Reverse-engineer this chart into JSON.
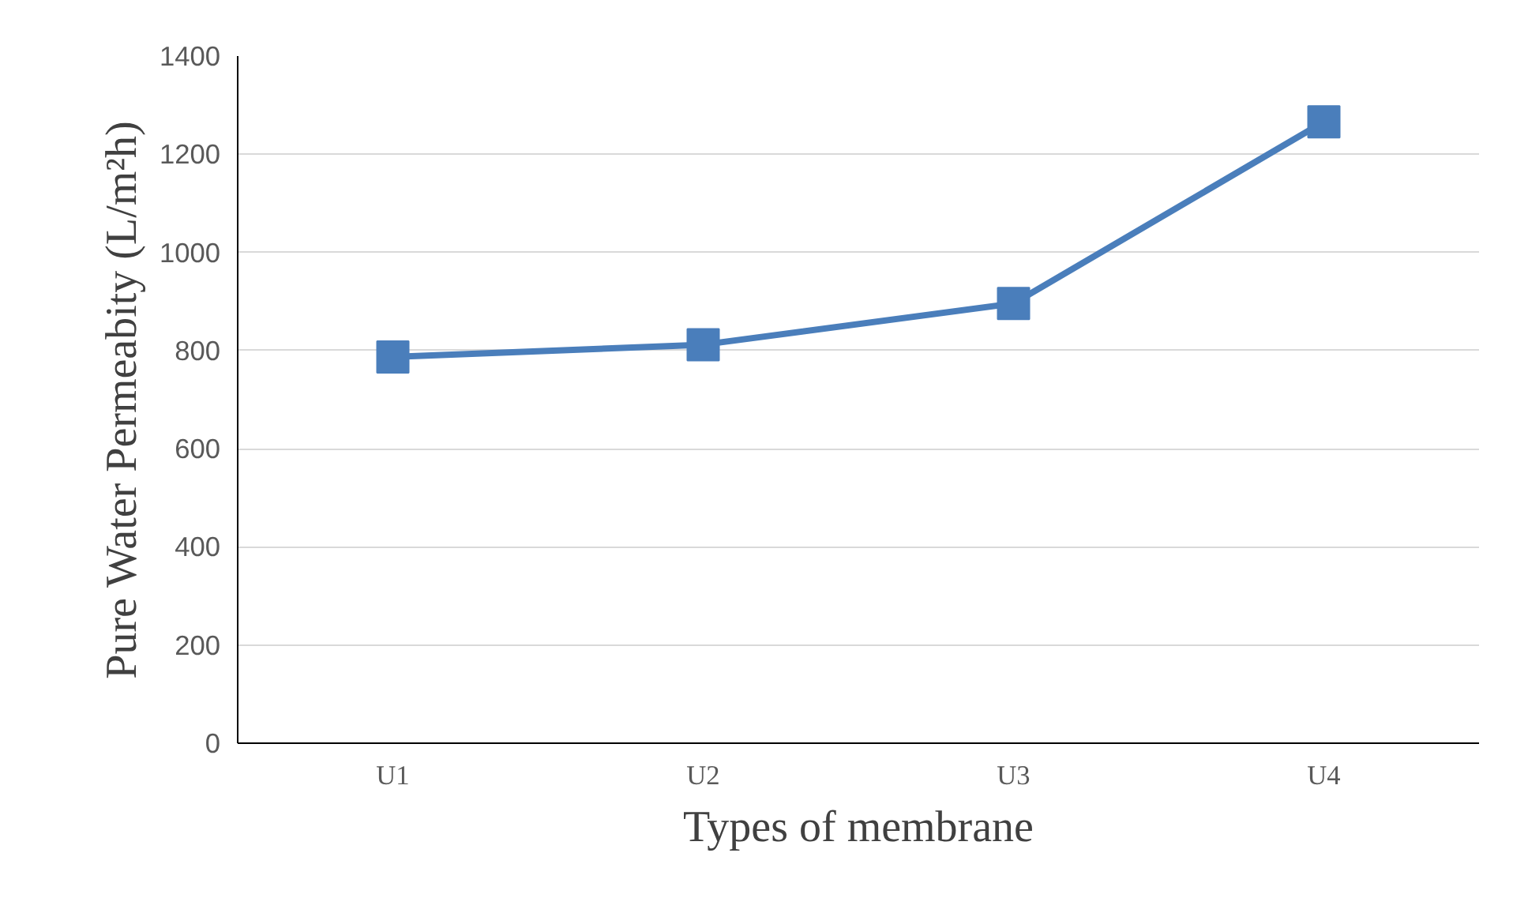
{
  "chart_data": {
    "type": "line",
    "xlabel": "Types of membrane",
    "ylabel": "Pure Water Permeabity (L/m²h)",
    "categories": [
      "U1",
      "U2",
      "U3",
      "U4"
    ],
    "series": [
      {
        "color": "#4a7ebb",
        "values": [
          787,
          812,
          896,
          1266
        ]
      }
    ],
    "ylim": [
      0,
      1400
    ],
    "yticks": [
      0,
      200,
      400,
      600,
      800,
      1000,
      1200,
      1400
    ],
    "grid": "y",
    "marker": "square",
    "line_style": "solid"
  }
}
